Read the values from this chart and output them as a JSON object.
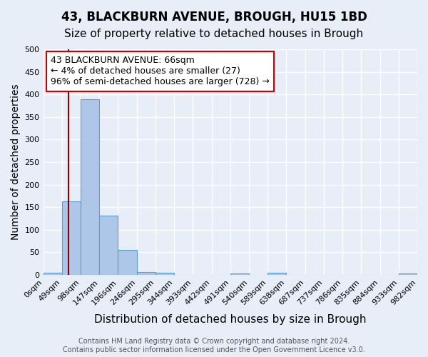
{
  "title": "43, BLACKBURN AVENUE, BROUGH, HU15 1BD",
  "subtitle": "Size of property relative to detached houses in Brough",
  "xlabel": "Distribution of detached houses by size in Brough",
  "ylabel": "Number of detached properties",
  "bin_labels": [
    "0sqm",
    "49sqm",
    "98sqm",
    "147sqm",
    "196sqm",
    "246sqm",
    "295sqm",
    "344sqm",
    "393sqm",
    "442sqm",
    "491sqm",
    "540sqm",
    "589sqm",
    "638sqm",
    "687sqm",
    "737sqm",
    "786sqm",
    "835sqm",
    "884sqm",
    "933sqm",
    "982sqm"
  ],
  "bar_values": [
    5,
    163,
    390,
    132,
    56,
    7,
    5,
    0,
    0,
    0,
    4,
    0,
    5,
    0,
    0,
    0,
    0,
    0,
    0,
    3
  ],
  "bar_color": "#aec6e8",
  "bar_edgecolor": "#5a9fd4",
  "background_color": "#e8eef8",
  "grid_color": "#ffffff",
  "vline_color": "#8b0000",
  "annotation_text": "43 BLACKBURN AVENUE: 66sqm\n← 4% of detached houses are smaller (27)\n96% of semi-detached houses are larger (728) →",
  "annotation_box_edgecolor": "#cc0000",
  "annotation_box_facecolor": "#ffffff",
  "ylim": [
    0,
    500
  ],
  "yticks": [
    0,
    50,
    100,
    150,
    200,
    250,
    300,
    350,
    400,
    450,
    500
  ],
  "footer_text": "Contains HM Land Registry data © Crown copyright and database right 2024.\nContains public sector information licensed under the Open Government Licence v3.0.",
  "title_fontsize": 12,
  "subtitle_fontsize": 11,
  "xlabel_fontsize": 11,
  "ylabel_fontsize": 10,
  "tick_fontsize": 8,
  "annotation_fontsize": 9,
  "footer_fontsize": 7
}
